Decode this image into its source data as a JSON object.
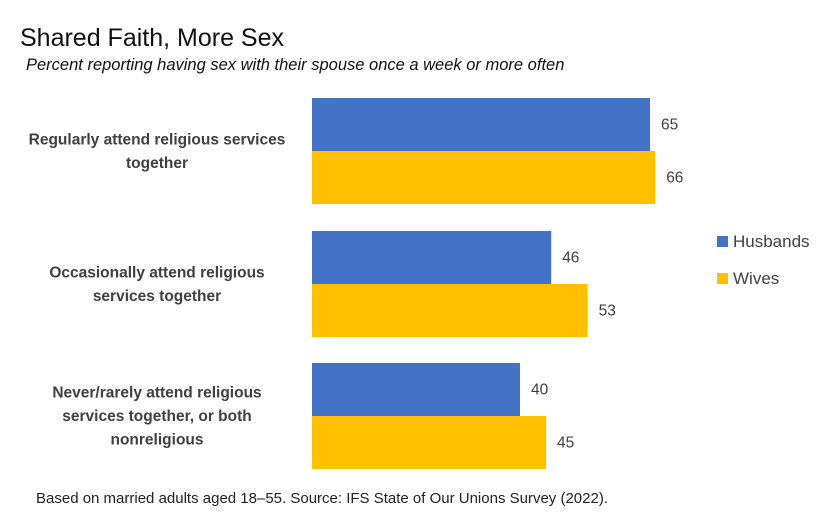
{
  "chart_data": {
    "type": "bar",
    "orientation": "horizontal",
    "title": "Shared Faith, More Sex",
    "subtitle": "Percent reporting having sex with their spouse once a week or more often",
    "categories": [
      [
        "Regularly attend religious services",
        "together"
      ],
      [
        "Occasionally attend religious",
        "services together"
      ],
      [
        "Never/rarely attend religious",
        "services together, or both",
        "nonreligious"
      ]
    ],
    "series": [
      {
        "name": "Husbands",
        "color": "#4472C4",
        "values": [
          65,
          46,
          40
        ]
      },
      {
        "name": "Wives",
        "color": "#FFC000",
        "values": [
          66,
          53,
          45
        ]
      }
    ],
    "xlim": [
      0,
      100
    ],
    "grid": false,
    "legend_position": "right",
    "source": "Based on married adults aged 18–55. Source: IFS State of Our Unions Survey (2022)."
  }
}
